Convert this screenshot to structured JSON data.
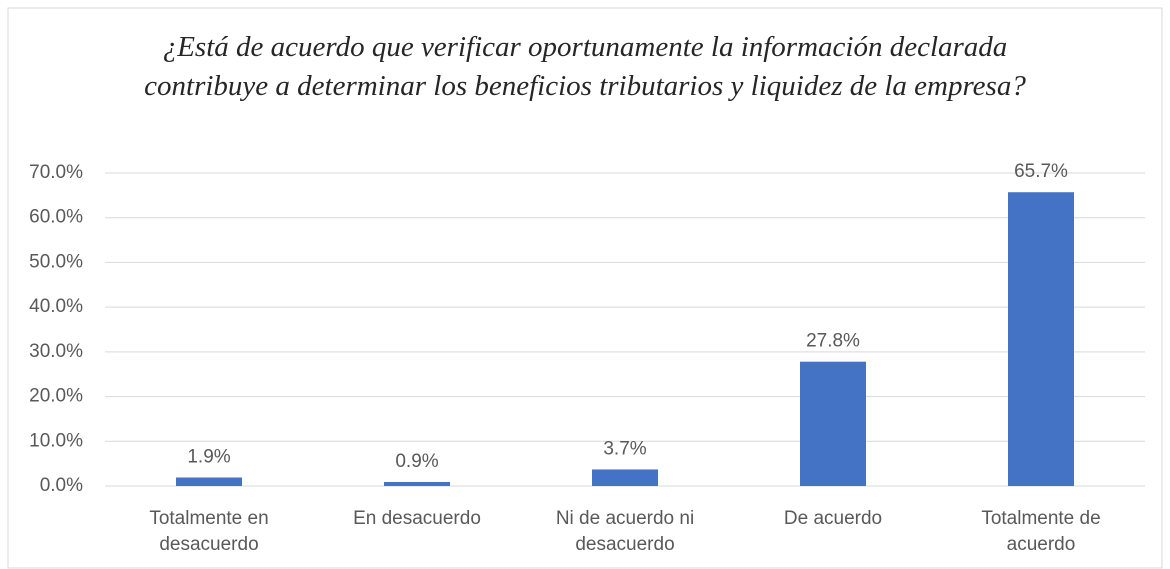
{
  "chart_data": {
    "type": "bar",
    "title": "¿Está de acuerdo que verificar oportunamente la información declarada contribuye a determinar los beneficios tributarios y liquidez de la empresa?",
    "categories": [
      "Totalmente en desacuerdo",
      "En desacuerdo",
      "Ni de acuerdo ni desacuerdo",
      "De acuerdo",
      "Totalmente de acuerdo"
    ],
    "values": [
      1.9,
      0.9,
      3.7,
      27.8,
      65.7
    ],
    "value_labels": [
      "1.9%",
      "0.9%",
      "3.7%",
      "27.8%",
      "65.7%"
    ],
    "color": "#4472c4",
    "ylim": [
      0,
      70
    ],
    "yticks": [
      {
        "value": 0,
        "label": "0.0%"
      },
      {
        "value": 10,
        "label": "10.0%"
      },
      {
        "value": 20,
        "label": "20.0%"
      },
      {
        "value": 30,
        "label": "30.0%"
      },
      {
        "value": 40,
        "label": "40.0%"
      },
      {
        "value": 50,
        "label": "50.0%"
      },
      {
        "value": 60,
        "label": "60.0%"
      },
      {
        "value": 70,
        "label": "70.0%"
      }
    ],
    "grid": true
  }
}
